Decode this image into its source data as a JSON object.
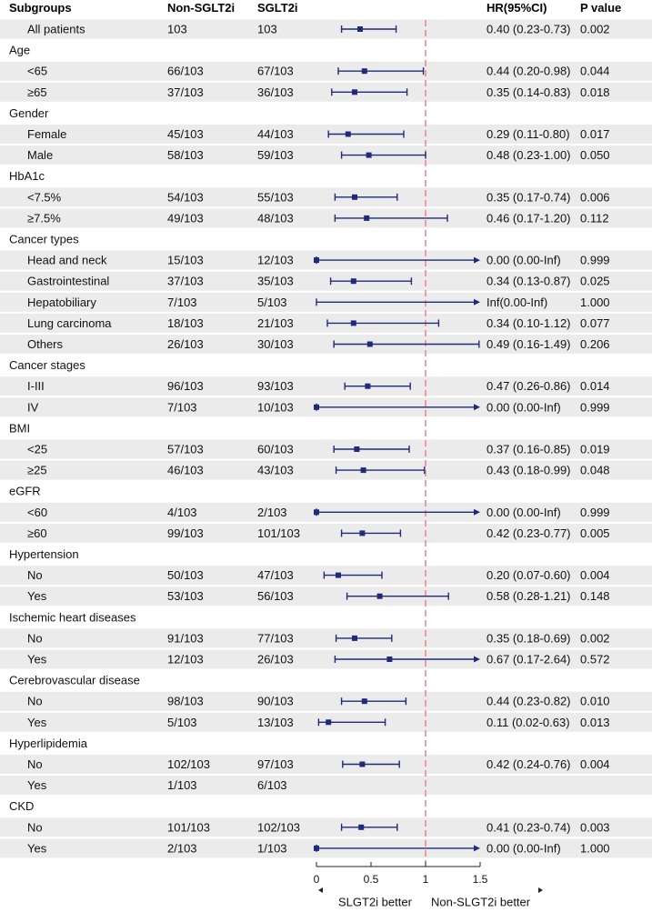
{
  "header": {
    "subgroups": "Subgroups",
    "non_sglt2i": "Non-SGLT2i",
    "sglt2i": "SGLT2i",
    "hr": "HR(95%CI)",
    "p_value": "P value"
  },
  "colors": {
    "stripe": "#ebebeb",
    "marker": "#1f2a7a",
    "reference_line": "#f0898e",
    "text": "#111111"
  },
  "chart_data": {
    "type": "forest",
    "title": "",
    "x_axis": {
      "range": [
        0,
        1.5
      ],
      "ticks": [
        0,
        0.5,
        1,
        1.5
      ],
      "tick_labels": [
        "0",
        "0.5",
        "1",
        "1.5"
      ],
      "reference_value": 1,
      "left_label": "SLGT2i better",
      "right_label": "Non-SLGT2i better"
    },
    "rows": [
      {
        "label": "All patients",
        "kind": "item",
        "non": "103",
        "sglt": "103",
        "hr": 0.4,
        "lo": 0.23,
        "hi": 0.73,
        "hr_text": "0.40 (0.23-0.73)",
        "p": "0.002"
      },
      {
        "label": "Age",
        "kind": "group"
      },
      {
        "label": "<65",
        "kind": "item",
        "non": "66/103",
        "sglt": "67/103",
        "hr": 0.44,
        "lo": 0.2,
        "hi": 0.98,
        "hr_text": "0.44 (0.20-0.98)",
        "p": "0.044"
      },
      {
        "label": "≥65",
        "kind": "item",
        "non": "37/103",
        "sglt": "36/103",
        "hr": 0.35,
        "lo": 0.14,
        "hi": 0.83,
        "hr_text": "0.35 (0.14-0.83)",
        "p": "0.018"
      },
      {
        "label": "Gender",
        "kind": "group"
      },
      {
        "label": "Female",
        "kind": "item",
        "non": "45/103",
        "sglt": "44/103",
        "hr": 0.29,
        "lo": 0.11,
        "hi": 0.8,
        "hr_text": "0.29 (0.11-0.80)",
        "p": "0.017"
      },
      {
        "label": "Male",
        "kind": "item",
        "non": "58/103",
        "sglt": "59/103",
        "hr": 0.48,
        "lo": 0.23,
        "hi": 1.0,
        "hr_text": "0.48 (0.23-1.00)",
        "p": "0.050"
      },
      {
        "label": "HbA1c",
        "kind": "group"
      },
      {
        "label": "<7.5%",
        "kind": "item",
        "non": "54/103",
        "sglt": "55/103",
        "hr": 0.35,
        "lo": 0.17,
        "hi": 0.74,
        "hr_text": "0.35 (0.17-0.74)",
        "p": "0.006"
      },
      {
        "label": "≥7.5%",
        "kind": "item",
        "non": "49/103",
        "sglt": "48/103",
        "hr": 0.46,
        "lo": 0.17,
        "hi": 1.2,
        "hr_text": "0.46 (0.17-1.20)",
        "p": "0.112"
      },
      {
        "label": "Cancer types",
        "kind": "group"
      },
      {
        "label": "Head and neck",
        "kind": "item",
        "non": "15/103",
        "sglt": "12/103",
        "hr": 0.0,
        "lo": 0.0,
        "hi": "Inf",
        "hr_text": "0.00 (0.00-Inf)",
        "p": "0.999"
      },
      {
        "label": "Gastrointestinal",
        "kind": "item",
        "non": "37/103",
        "sglt": "35/103",
        "hr": 0.34,
        "lo": 0.13,
        "hi": 0.87,
        "hr_text": "0.34 (0.13-0.87)",
        "p": "0.025"
      },
      {
        "label": "Hepatobiliary",
        "kind": "item",
        "non": "7/103",
        "sglt": "5/103",
        "hr": "Inf",
        "lo": 0.0,
        "hi": "Inf",
        "hr_text": "Inf(0.00-Inf)",
        "p": "1.000"
      },
      {
        "label": "Lung carcinoma",
        "kind": "item",
        "non": "18/103",
        "sglt": "21/103",
        "hr": 0.34,
        "lo": 0.1,
        "hi": 1.12,
        "hr_text": "0.34 (0.10-1.12)",
        "p": "0.077"
      },
      {
        "label": "Others",
        "kind": "item",
        "non": "26/103",
        "sglt": "30/103",
        "hr": 0.49,
        "lo": 0.16,
        "hi": 1.49,
        "hr_text": "0.49 (0.16-1.49)",
        "p": "0.206"
      },
      {
        "label": "Cancer stages",
        "kind": "group"
      },
      {
        "label": "I-III",
        "kind": "item",
        "non": "96/103",
        "sglt": "93/103",
        "hr": 0.47,
        "lo": 0.26,
        "hi": 0.86,
        "hr_text": "0.47 (0.26-0.86)",
        "p": "0.014"
      },
      {
        "label": "IV",
        "kind": "item",
        "non": "7/103",
        "sglt": "10/103",
        "hr": 0.0,
        "lo": 0.0,
        "hi": "Inf",
        "hr_text": "0.00 (0.00-Inf)",
        "p": "0.999"
      },
      {
        "label": "BMI",
        "kind": "group"
      },
      {
        "label": "<25",
        "kind": "item",
        "non": "57/103",
        "sglt": "60/103",
        "hr": 0.37,
        "lo": 0.16,
        "hi": 0.85,
        "hr_text": "0.37 (0.16-0.85)",
        "p": "0.019"
      },
      {
        "label": "≥25",
        "kind": "item",
        "non": "46/103",
        "sglt": "43/103",
        "hr": 0.43,
        "lo": 0.18,
        "hi": 0.99,
        "hr_text": "0.43 (0.18-0.99)",
        "p": "0.048"
      },
      {
        "label": "eGFR",
        "kind": "group"
      },
      {
        "label": "<60",
        "kind": "item",
        "non": "4/103",
        "sglt": "2/103",
        "hr": 0.0,
        "lo": 0.0,
        "hi": "Inf",
        "hr_text": "0.00 (0.00-Inf)",
        "p": "0.999"
      },
      {
        "label": "≥60",
        "kind": "item",
        "non": "99/103",
        "sglt": "101/103",
        "hr": 0.42,
        "lo": 0.23,
        "hi": 0.77,
        "hr_text": "0.42 (0.23-0.77)",
        "p": "0.005"
      },
      {
        "label": "Hypertension",
        "kind": "group"
      },
      {
        "label": "No",
        "kind": "item",
        "non": "50/103",
        "sglt": "47/103",
        "hr": 0.2,
        "lo": 0.07,
        "hi": 0.6,
        "hr_text": "0.20 (0.07-0.60)",
        "p": "0.004"
      },
      {
        "label": "Yes",
        "kind": "item",
        "non": "53/103",
        "sglt": "56/103",
        "hr": 0.58,
        "lo": 0.28,
        "hi": 1.21,
        "hr_text": "0.58 (0.28-1.21)",
        "p": "0.148"
      },
      {
        "label": "Ischemic heart diseases",
        "kind": "group"
      },
      {
        "label": "No",
        "kind": "item",
        "non": "91/103",
        "sglt": "77/103",
        "hr": 0.35,
        "lo": 0.18,
        "hi": 0.69,
        "hr_text": "0.35 (0.18-0.69)",
        "p": "0.002"
      },
      {
        "label": "Yes",
        "kind": "item",
        "non": "12/103",
        "sglt": "26/103",
        "hr": 0.67,
        "lo": 0.17,
        "hi": 2.64,
        "hr_text": "0.67 (0.17-2.64)",
        "p": "0.572"
      },
      {
        "label": "Cerebrovascular disease",
        "kind": "group"
      },
      {
        "label": "No",
        "kind": "item",
        "non": "98/103",
        "sglt": "90/103",
        "hr": 0.44,
        "lo": 0.23,
        "hi": 0.82,
        "hr_text": "0.44 (0.23-0.82)",
        "p": "0.010"
      },
      {
        "label": "Yes",
        "kind": "item",
        "non": "5/103",
        "sglt": "13/103",
        "hr": 0.11,
        "lo": 0.02,
        "hi": 0.63,
        "hr_text": "0.11 (0.02-0.63)",
        "p": "0.013"
      },
      {
        "label": "Hyperlipidemia",
        "kind": "group"
      },
      {
        "label": "No",
        "kind": "item",
        "non": "102/103",
        "sglt": "97/103",
        "hr": 0.42,
        "lo": 0.24,
        "hi": 0.76,
        "hr_text": "0.42 (0.24-0.76)",
        "p": "0.004"
      },
      {
        "label": "Yes",
        "kind": "item",
        "non": "1/103",
        "sglt": "6/103",
        "hr": null,
        "lo": null,
        "hi": null,
        "hr_text": "",
        "p": ""
      },
      {
        "label": "CKD",
        "kind": "group"
      },
      {
        "label": "No",
        "kind": "item",
        "non": "101/103",
        "sglt": "102/103",
        "hr": 0.41,
        "lo": 0.23,
        "hi": 0.74,
        "hr_text": "0.41 (0.23-0.74)",
        "p": "0.003"
      },
      {
        "label": "Yes",
        "kind": "item",
        "non": "2/103",
        "sglt": "1/103",
        "hr": 0.0,
        "lo": 0.0,
        "hi": "Inf",
        "hr_text": "0.00 (0.00-Inf)",
        "p": "1.000"
      }
    ]
  }
}
